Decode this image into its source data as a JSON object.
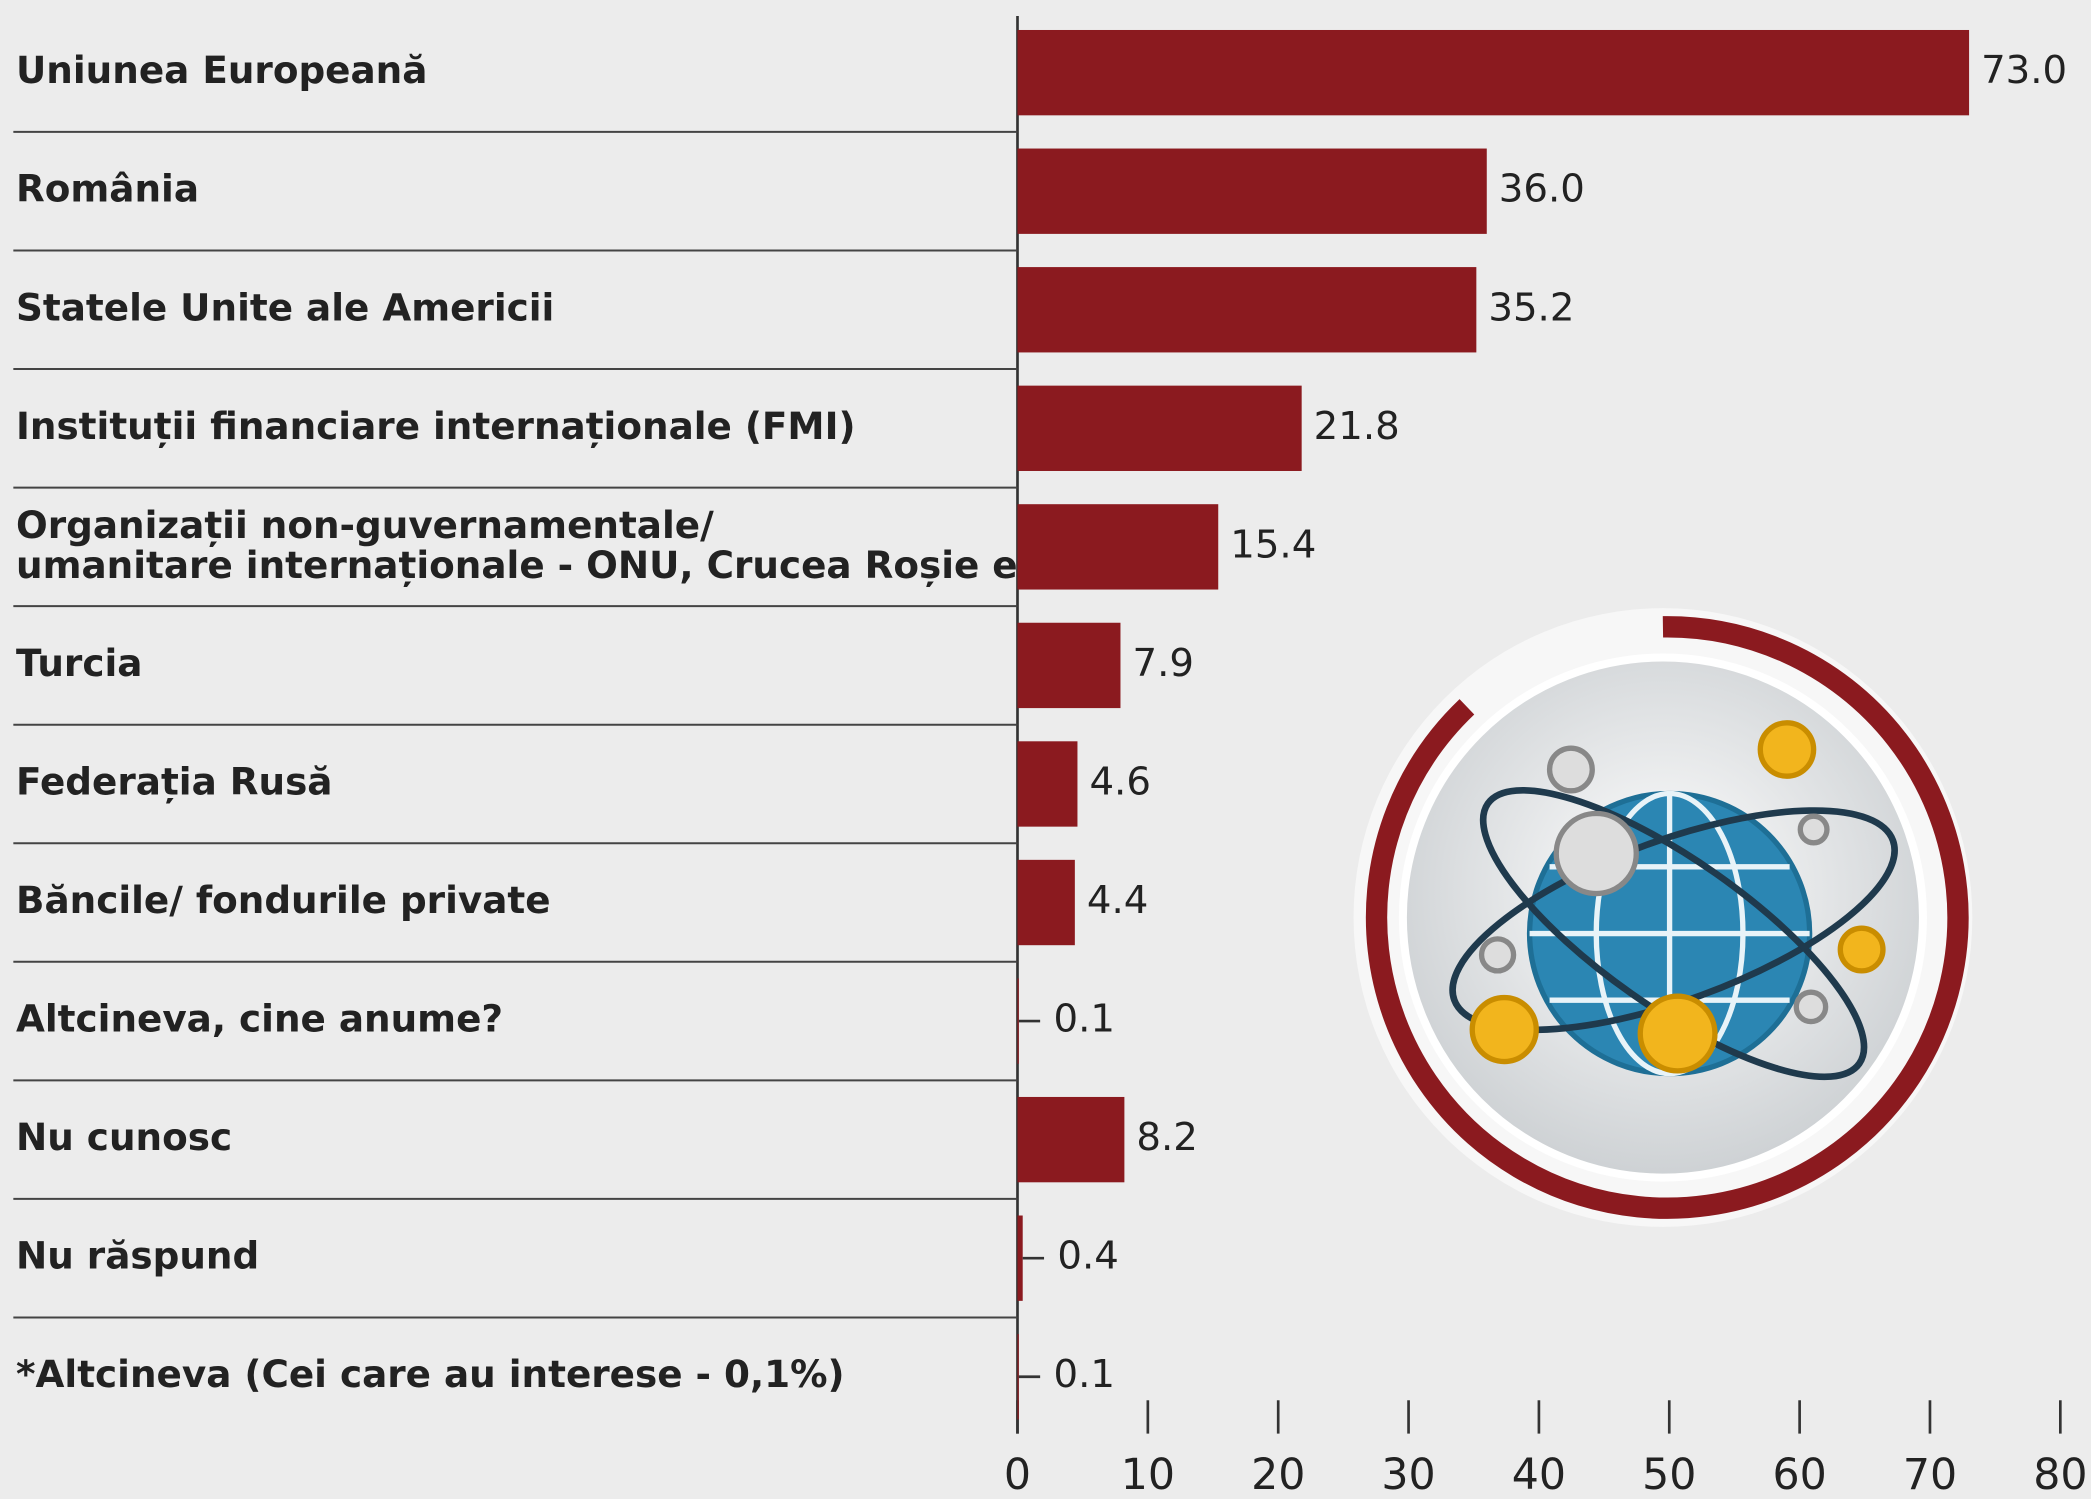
{
  "chart_data": {
    "type": "hbar",
    "categories": [
      "Uniunea Europeană",
      "România",
      "Statele Unite ale Americii",
      "Instituții financiare internaționale (FMI)",
      "Organizații non-guvernamentale/\numanitare internaționale - ONU, Crucea Roșie etc",
      "Turcia",
      "Federația Rusă",
      "Băncile/ fondurile private",
      "Altcineva, cine anume?",
      "Nu cunosc",
      "Nu răspund",
      "*Altcineva (Cei care au interese - 0,1%)"
    ],
    "values": [
      73.0,
      36.0,
      35.2,
      21.8,
      15.4,
      7.9,
      4.6,
      4.4,
      0.1,
      8.2,
      0.4,
      0.1
    ],
    "value_labels": [
      "73.0",
      "36.0",
      "35.2",
      "21.8",
      "15.4",
      "7.9",
      "4.6",
      "4.4",
      "0.1",
      "8.2",
      "0.4",
      "0.1"
    ],
    "color": "#8b1a1f",
    "xlim": [
      0,
      80
    ],
    "xticks": [
      0,
      10,
      20,
      30,
      40,
      50,
      60,
      70,
      80
    ]
  }
}
